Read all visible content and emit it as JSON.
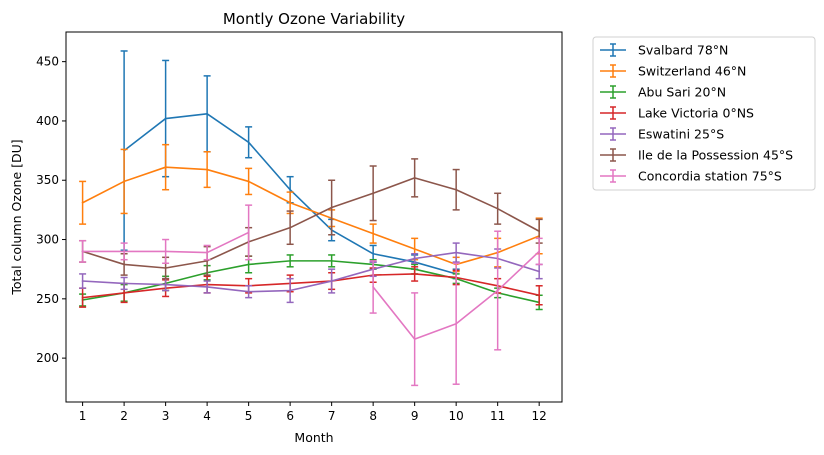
{
  "chart_data": {
    "type": "line",
    "title": "Montly Ozone Variability",
    "xlabel": "Month",
    "ylabel": "Total column Ozone [DU]",
    "x": [
      1,
      2,
      3,
      4,
      5,
      6,
      7,
      8,
      9,
      10,
      11,
      12
    ],
    "xlim": [
      0.6,
      12.55
    ],
    "ylim": [
      163,
      475
    ],
    "yticks": [
      200,
      250,
      300,
      350,
      400,
      450
    ],
    "grid": false,
    "legend_position": "outside-right",
    "error_bars": true,
    "series": [
      {
        "name": "Svalbard 78°N",
        "color": "#1f77b4",
        "values": [
          null,
          375,
          402,
          406,
          382,
          342,
          308,
          288,
          281,
          271,
          null,
          null
        ],
        "errors": [
          null,
          84,
          49,
          32,
          13,
          11,
          9,
          7,
          6,
          4,
          null,
          null
        ]
      },
      {
        "name": "Switzerland 46°N",
        "color": "#ff7f0e",
        "values": [
          331,
          349,
          361,
          359,
          349,
          331,
          318,
          305,
          292,
          279,
          289,
          303
        ],
        "errors": [
          18,
          27,
          19,
          15,
          11,
          9,
          7,
          8,
          9,
          6,
          12,
          15
        ]
      },
      {
        "name": "Abu Sari 20°N",
        "color": "#2ca02c",
        "values": [
          249,
          255,
          263,
          272,
          279,
          282,
          282,
          279,
          275,
          267,
          255,
          247
        ],
        "errors": [
          5,
          7,
          6,
          6,
          7,
          5,
          5,
          4,
          4,
          4,
          4,
          6
        ]
      },
      {
        "name": "Lake Victoria 0°NS",
        "color": "#d62728",
        "values": [
          251,
          255,
          259,
          262,
          261,
          263,
          265,
          270,
          271,
          268,
          261,
          253
        ],
        "errors": [
          8,
          8,
          7,
          7,
          6,
          7,
          7,
          6,
          6,
          6,
          6,
          8
        ]
      },
      {
        "name": "Eswatini 25°S",
        "color": "#9467bd",
        "values": [
          265,
          263,
          262,
          260,
          256,
          257,
          265,
          275,
          284,
          289,
          284,
          273
        ],
        "errors": [
          6,
          5,
          5,
          5,
          5,
          10,
          10,
          6,
          4,
          8,
          8,
          6
        ]
      },
      {
        "name": "Ile de la Possession 45°S",
        "color": "#8c564b",
        "values": [
          290,
          279,
          276,
          282,
          298,
          310,
          327,
          339,
          352,
          342,
          326,
          307
        ],
        "errors": [
          9,
          9,
          9,
          12,
          12,
          14,
          23,
          23,
          16,
          17,
          13,
          10
        ]
      },
      {
        "name": "Concordia station 75°S",
        "color": "#e377c2",
        "values": [
          290,
          290,
          290,
          289,
          306,
          null,
          null,
          260,
          216,
          229,
          257,
          290
        ],
        "errors": [
          9,
          7,
          10,
          6,
          23,
          null,
          null,
          22,
          39,
          51,
          50,
          11
        ]
      }
    ]
  }
}
